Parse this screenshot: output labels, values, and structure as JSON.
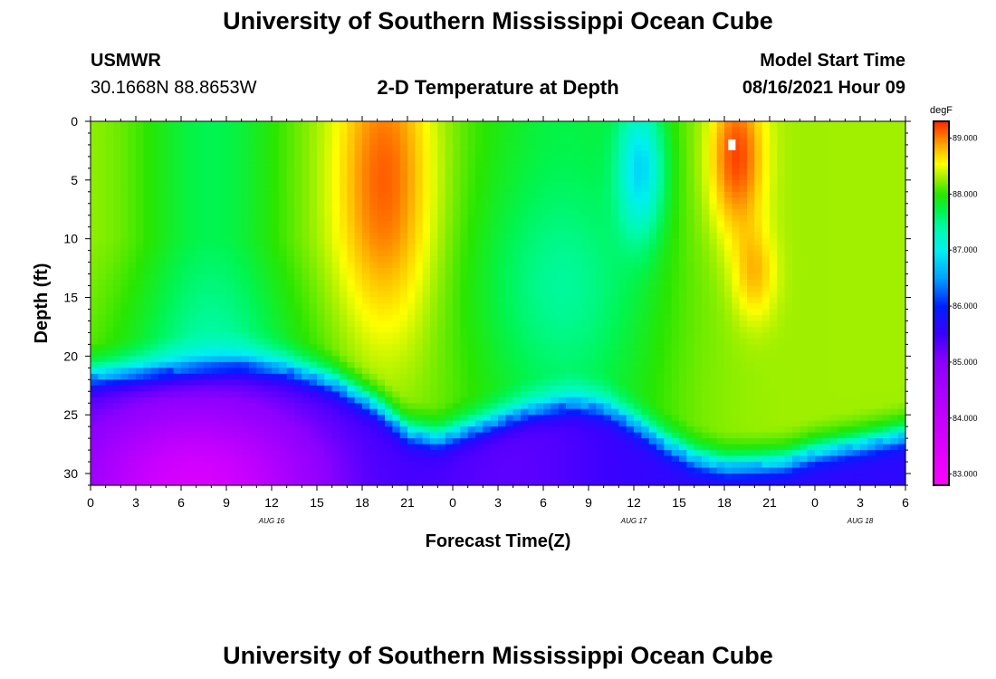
{
  "header": {
    "title": "University of Southern Mississippi Ocean Cube",
    "station": "USMWR",
    "coords": "30.1668N  88.8653W",
    "subtitle": "2-D Temperature at Depth",
    "model_label": "Model Start Time",
    "model_time": "08/16/2021 Hour 09"
  },
  "footer": {
    "title": "University of Southern Mississippi Ocean Cube"
  },
  "chart_data": {
    "type": "heatmap",
    "title": "2-D Temperature at Depth",
    "xlabel": "Forecast Time(Z)",
    "ylabel": "Depth (ft)",
    "x_range_hours": [
      0,
      54
    ],
    "y_range_ft": [
      0,
      31
    ],
    "x_ticks": [
      {
        "hour": 0,
        "label": "0"
      },
      {
        "hour": 3,
        "label": "3"
      },
      {
        "hour": 6,
        "label": "6"
      },
      {
        "hour": 9,
        "label": "9"
      },
      {
        "hour": 12,
        "label": "12"
      },
      {
        "hour": 15,
        "label": "15"
      },
      {
        "hour": 18,
        "label": "18"
      },
      {
        "hour": 21,
        "label": "21"
      },
      {
        "hour": 24,
        "label": "0"
      },
      {
        "hour": 27,
        "label": "3"
      },
      {
        "hour": 30,
        "label": "6"
      },
      {
        "hour": 33,
        "label": "9"
      },
      {
        "hour": 36,
        "label": "12"
      },
      {
        "hour": 39,
        "label": "15"
      },
      {
        "hour": 42,
        "label": "18"
      },
      {
        "hour": 45,
        "label": "21"
      },
      {
        "hour": 48,
        "label": "0"
      },
      {
        "hour": 51,
        "label": "3"
      },
      {
        "hour": 54,
        "label": "6"
      }
    ],
    "date_labels": [
      {
        "hour": 12,
        "label": "AUG  16"
      },
      {
        "hour": 36,
        "label": "AUG  17"
      },
      {
        "hour": 51,
        "label": "AUG  18"
      }
    ],
    "y_ticks": [
      0,
      5,
      10,
      15,
      20,
      25,
      30
    ],
    "colorbar": {
      "unit": "degF",
      "min": 82.8,
      "max": 89.3,
      "ticks": [
        "83.000",
        "84.000",
        "85.000",
        "86.000",
        "87.000",
        "88.000",
        "89.000"
      ]
    },
    "thermocline_depth_ft": [
      [
        0,
        21.8
      ],
      [
        6,
        21.2
      ],
      [
        10,
        20.8
      ],
      [
        13,
        21.2
      ],
      [
        16,
        22.3
      ],
      [
        19,
        24.4
      ],
      [
        21,
        26.6
      ],
      [
        23,
        27.2
      ],
      [
        26,
        26.0
      ],
      [
        29,
        24.8
      ],
      [
        32,
        24.1
      ],
      [
        34,
        24.5
      ],
      [
        36,
        25.8
      ],
      [
        38,
        27.5
      ],
      [
        40,
        28.8
      ],
      [
        42,
        29.4
      ],
      [
        44,
        29.3
      ],
      [
        46,
        29.1
      ],
      [
        48,
        28.3
      ],
      [
        51,
        27.6
      ],
      [
        54,
        26.8
      ]
    ],
    "warm_cores": [
      {
        "hour": 19.5,
        "depth_ft": 5,
        "temp_f": 89.1
      },
      {
        "hour": 43,
        "depth_ft": 3,
        "temp_f": 89.3
      }
    ],
    "cool_core": {
      "hour": 36.5,
      "depth_ft": 5,
      "temp_f": 86.9
    },
    "marker": {
      "hour": 42.5,
      "depth_ft": 2
    }
  }
}
